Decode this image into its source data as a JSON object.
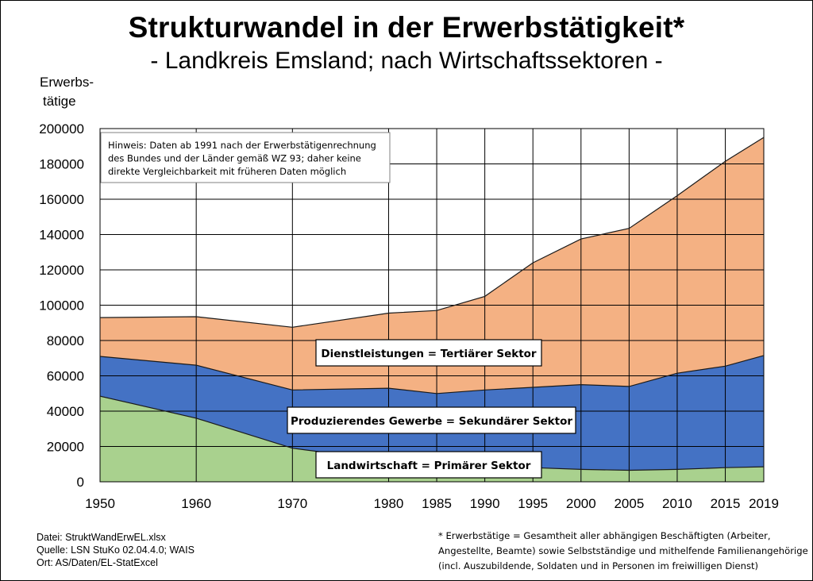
{
  "title": "Strukturwandel in der Erwerbstätigkeit*",
  "subtitle": "- Landkreis Emsland; nach Wirtschaftssektoren -",
  "ylabel_line1": "Erwerbs-",
  "ylabel_line2": "tätige",
  "note": [
    "Hinweis: Daten ab 1991 nach der Erwerbstätigenrechnung",
    "des Bundes und der Länder gemäß WZ 93; daher keine",
    "direkte Vergleichbarkeit mit früheren Daten möglich"
  ],
  "footer_left": [
    "Datei: StruktWandErwEL.xlsx",
    "Quelle: LSN StuKo 02.04.4.0; WAIS",
    "Ort: AS/Daten/EL-StatExcel"
  ],
  "footer_right": [
    "* Erwerbstätige = Gesamtheit aller abhängigen Beschäftigten (Arbeiter,",
    "Angestellte, Beamte) sowie Selbstständige und mithelfende Familienangehörige",
    "(incl. Auszubildende, Soldaten und in Personen im freiwilligen Dienst)"
  ],
  "chart_data": {
    "type": "area",
    "stacked": true,
    "x": [
      "1950",
      "1960",
      "1970",
      "1980",
      "1985",
      "1990",
      "1995",
      "2000",
      "2005",
      "2010",
      "2015",
      "2019"
    ],
    "ylim": [
      0,
      200000
    ],
    "yticks": [
      "0",
      "20000",
      "40000",
      "60000",
      "80000",
      "100000",
      "120000",
      "140000",
      "160000",
      "180000",
      "200000"
    ],
    "grid": true,
    "series": [
      {
        "name": "Landwirtschaft = Primärer Sektor",
        "color": "#a9d18e",
        "values": [
          48500,
          36000,
          19000,
          12000,
          10000,
          9000,
          8000,
          7000,
          6500,
          7000,
          8000,
          8500
        ]
      },
      {
        "name": "Produzierendes Gewerbe = Sekundärer Sektor",
        "color": "#4472c4",
        "values": [
          22500,
          30000,
          33000,
          41000,
          40000,
          43000,
          45500,
          48000,
          47500,
          54500,
          57500,
          63000
        ]
      },
      {
        "name": "Dienstleistungen = Tertiärer Sektor",
        "color": "#f4b183",
        "values": [
          22000,
          27500,
          35500,
          42500,
          47000,
          53000,
          70500,
          82500,
          89500,
          100500,
          116000,
          123500
        ]
      }
    ]
  }
}
